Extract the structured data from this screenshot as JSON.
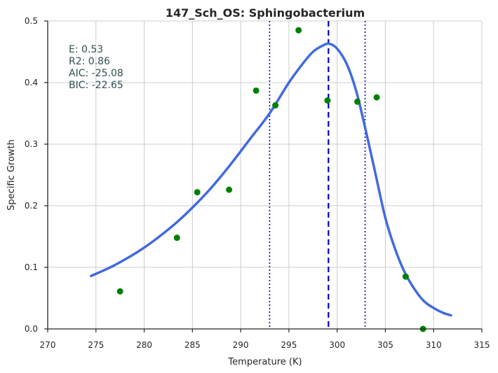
{
  "chart_data": {
    "type": "scatter",
    "title": "147_Sch_OS: Sphingobacterium",
    "xlabel": "Temperature (K)",
    "ylabel": "Specific Growth",
    "xlim": [
      270,
      315
    ],
    "ylim": [
      0,
      0.5
    ],
    "xticks": [
      270,
      275,
      280,
      285,
      290,
      295,
      300,
      305,
      310,
      315
    ],
    "yticks": [
      0.0,
      0.1,
      0.2,
      0.3,
      0.4,
      0.5
    ],
    "xtick_labels": [
      "270",
      "275",
      "280",
      "285",
      "290",
      "295",
      "300",
      "305",
      "310",
      "315"
    ],
    "ytick_labels": [
      "0.0",
      "0.1",
      "0.2",
      "0.3",
      "0.4",
      "0.5"
    ],
    "grid": true,
    "annotations": [
      "E:  0.53",
      "R2:  0.86",
      "AIC: -25.08",
      "BIC: -22.65"
    ],
    "points": {
      "color": "#008000",
      "x": [
        277.5,
        283.4,
        285.5,
        288.8,
        291.6,
        293.6,
        296.0,
        299.0,
        302.1,
        304.1,
        307.1,
        308.9
      ],
      "y": [
        0.061,
        0.148,
        0.222,
        0.226,
        0.387,
        0.363,
        0.485,
        0.371,
        0.369,
        0.376,
        0.085,
        0.0
      ]
    },
    "fit_curve": {
      "color": "#4169e1",
      "x": [
        274.5,
        277,
        280,
        283,
        285,
        287,
        289,
        291,
        293,
        295,
        296.5,
        297.5,
        298.5,
        299.2,
        300,
        301,
        302,
        303,
        304,
        305,
        306,
        307,
        308,
        309,
        310,
        311,
        311.8
      ],
      "y": [
        0.086,
        0.104,
        0.132,
        0.168,
        0.197,
        0.23,
        0.268,
        0.309,
        0.35,
        0.4,
        0.432,
        0.45,
        0.46,
        0.463,
        0.455,
        0.43,
        0.385,
        0.32,
        0.25,
        0.18,
        0.13,
        0.092,
        0.065,
        0.045,
        0.034,
        0.026,
        0.022
      ]
    },
    "vlines": [
      {
        "x": 299.1,
        "style": "dashed",
        "color": "#0000cd"
      },
      {
        "x": 293.0,
        "style": "dotted",
        "color": "#0000cd"
      },
      {
        "x": 302.9,
        "style": "dotted",
        "color": "#0000cd"
      }
    ]
  }
}
